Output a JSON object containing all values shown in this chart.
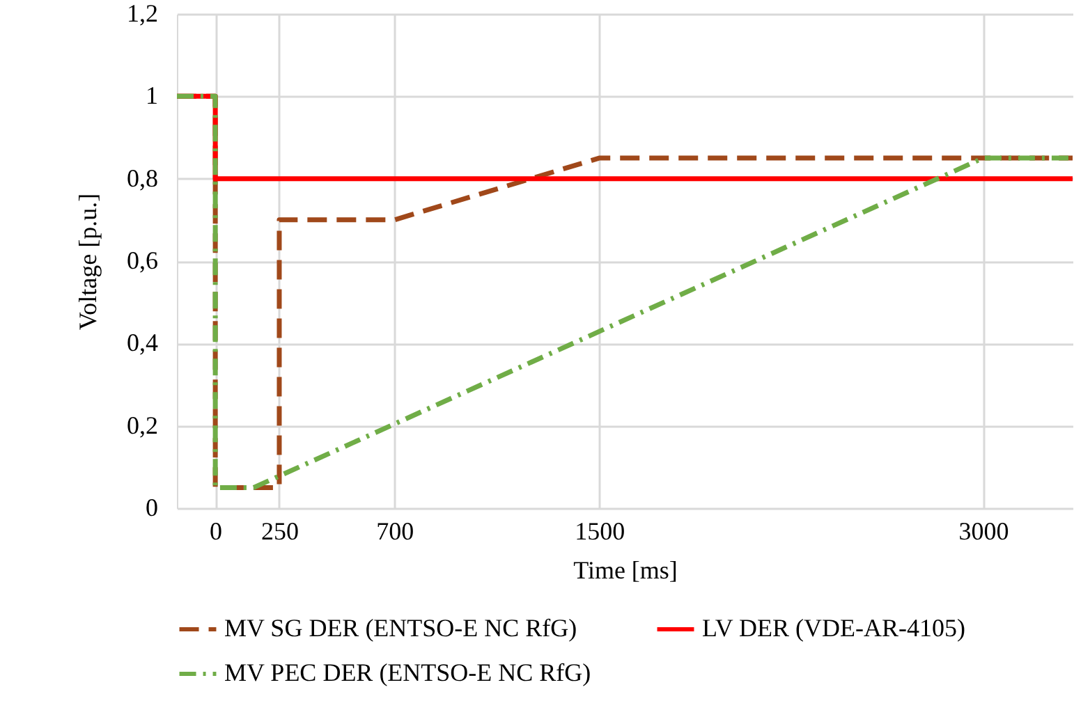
{
  "chart_data": {
    "type": "line",
    "xlabel": "Time [ms]",
    "ylabel": "Voltage [p.u.]",
    "xlim": [
      -150,
      3350
    ],
    "xticks": [
      0,
      250,
      700,
      1500,
      3000
    ],
    "ylim": [
      0,
      1.2
    ],
    "yticks": [
      0,
      {
        "value": 0.2,
        "label": "0,2"
      },
      {
        "value": 0.4,
        "label": "0,4"
      },
      {
        "value": 0.6,
        "label": "0,6"
      },
      {
        "value": 0.8,
        "label": "0,8"
      },
      1,
      {
        "value": 1.2,
        "label": "1,2"
      }
    ],
    "grid": true,
    "legend": "bottom",
    "marker": "none",
    "series": [
      {
        "name": "MV SG DER (ENTSO-E NC RfG)",
        "color": "#a0481a",
        "line_style": "dashed",
        "x": [
          -150,
          0,
          0,
          250,
          250,
          700,
          1500,
          3350
        ],
        "values": [
          1,
          1,
          0.05,
          0.05,
          0.7,
          0.7,
          0.85,
          0.85
        ]
      },
      {
        "name": "LV DER (VDE-AR-4105)",
        "color": "#ff0000",
        "line_style": "solid",
        "x": [
          -150,
          0,
          0,
          3350
        ],
        "values": [
          1,
          1,
          0.8,
          0.8
        ]
      },
      {
        "name": "MV PEC DER (ENTSO-E NC RfG)",
        "color": "#70ad47",
        "line_style": "dashdot",
        "x": [
          -150,
          0,
          0,
          150,
          3000,
          3350
        ],
        "values": [
          1,
          1,
          0.05,
          0.05,
          0.85,
          0.85
        ]
      }
    ]
  }
}
